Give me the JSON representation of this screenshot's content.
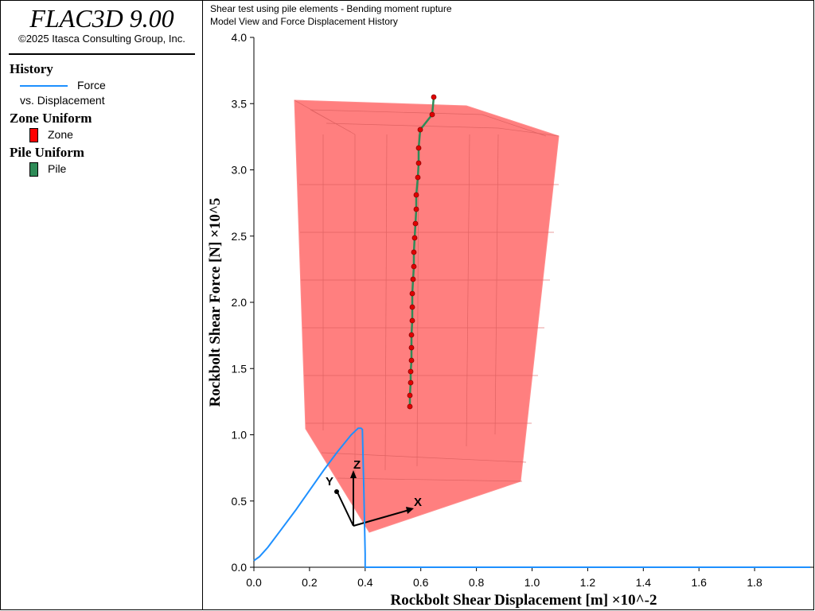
{
  "app": {
    "title": "FLAC3D 9.00",
    "copyright": "©2025 Itasca Consulting Group, Inc."
  },
  "legend": {
    "history_heading": "History",
    "history_line1": "Force",
    "history_line2": "vs. Displacement",
    "zone_heading": "Zone Uniform",
    "zone_label": "Zone",
    "zone_color": "#ff0000",
    "pile_heading": "Pile Uniform",
    "pile_label": "Pile",
    "pile_color": "#2e8b57"
  },
  "captions": {
    "line1": "Shear test using pile elements - Bending moment rupture",
    "line2": "Model View and Force Displacement History"
  },
  "triad": {
    "x": "X",
    "y": "Y",
    "z": "Z"
  },
  "chart_data": {
    "type": "line",
    "title": "",
    "xlabel": "Rockbolt Shear Displacement [m] ×10^-2",
    "ylabel": "Rockbolt Shear Force [N] ×10^5",
    "xlim": [
      0.0,
      2.0
    ],
    "ylim": [
      0.0,
      4.0
    ],
    "x_ticks": [
      "0.0",
      "0.2",
      "0.4",
      "0.6",
      "0.8",
      "1.0",
      "1.2",
      "1.4",
      "1.6",
      "1.8"
    ],
    "y_ticks": [
      "0.0",
      "0.5",
      "1.0",
      "1.5",
      "2.0",
      "2.5",
      "3.0",
      "3.5",
      "4.0"
    ],
    "series": [
      {
        "name": "Force vs. Displacement",
        "color": "#1e90ff",
        "x": [
          0.0,
          0.02,
          0.05,
          0.1,
          0.15,
          0.2,
          0.25,
          0.3,
          0.35,
          0.375,
          0.385,
          0.39,
          0.395,
          0.4,
          0.4,
          0.41,
          0.5,
          1.0,
          1.5,
          2.0
        ],
        "y": [
          0.05,
          0.08,
          0.15,
          0.29,
          0.43,
          0.58,
          0.73,
          0.87,
          1.0,
          1.05,
          1.05,
          1.04,
          0.6,
          0.1,
          0.0,
          0.0,
          0.0,
          0.0,
          0.0,
          0.0
        ]
      }
    ]
  }
}
